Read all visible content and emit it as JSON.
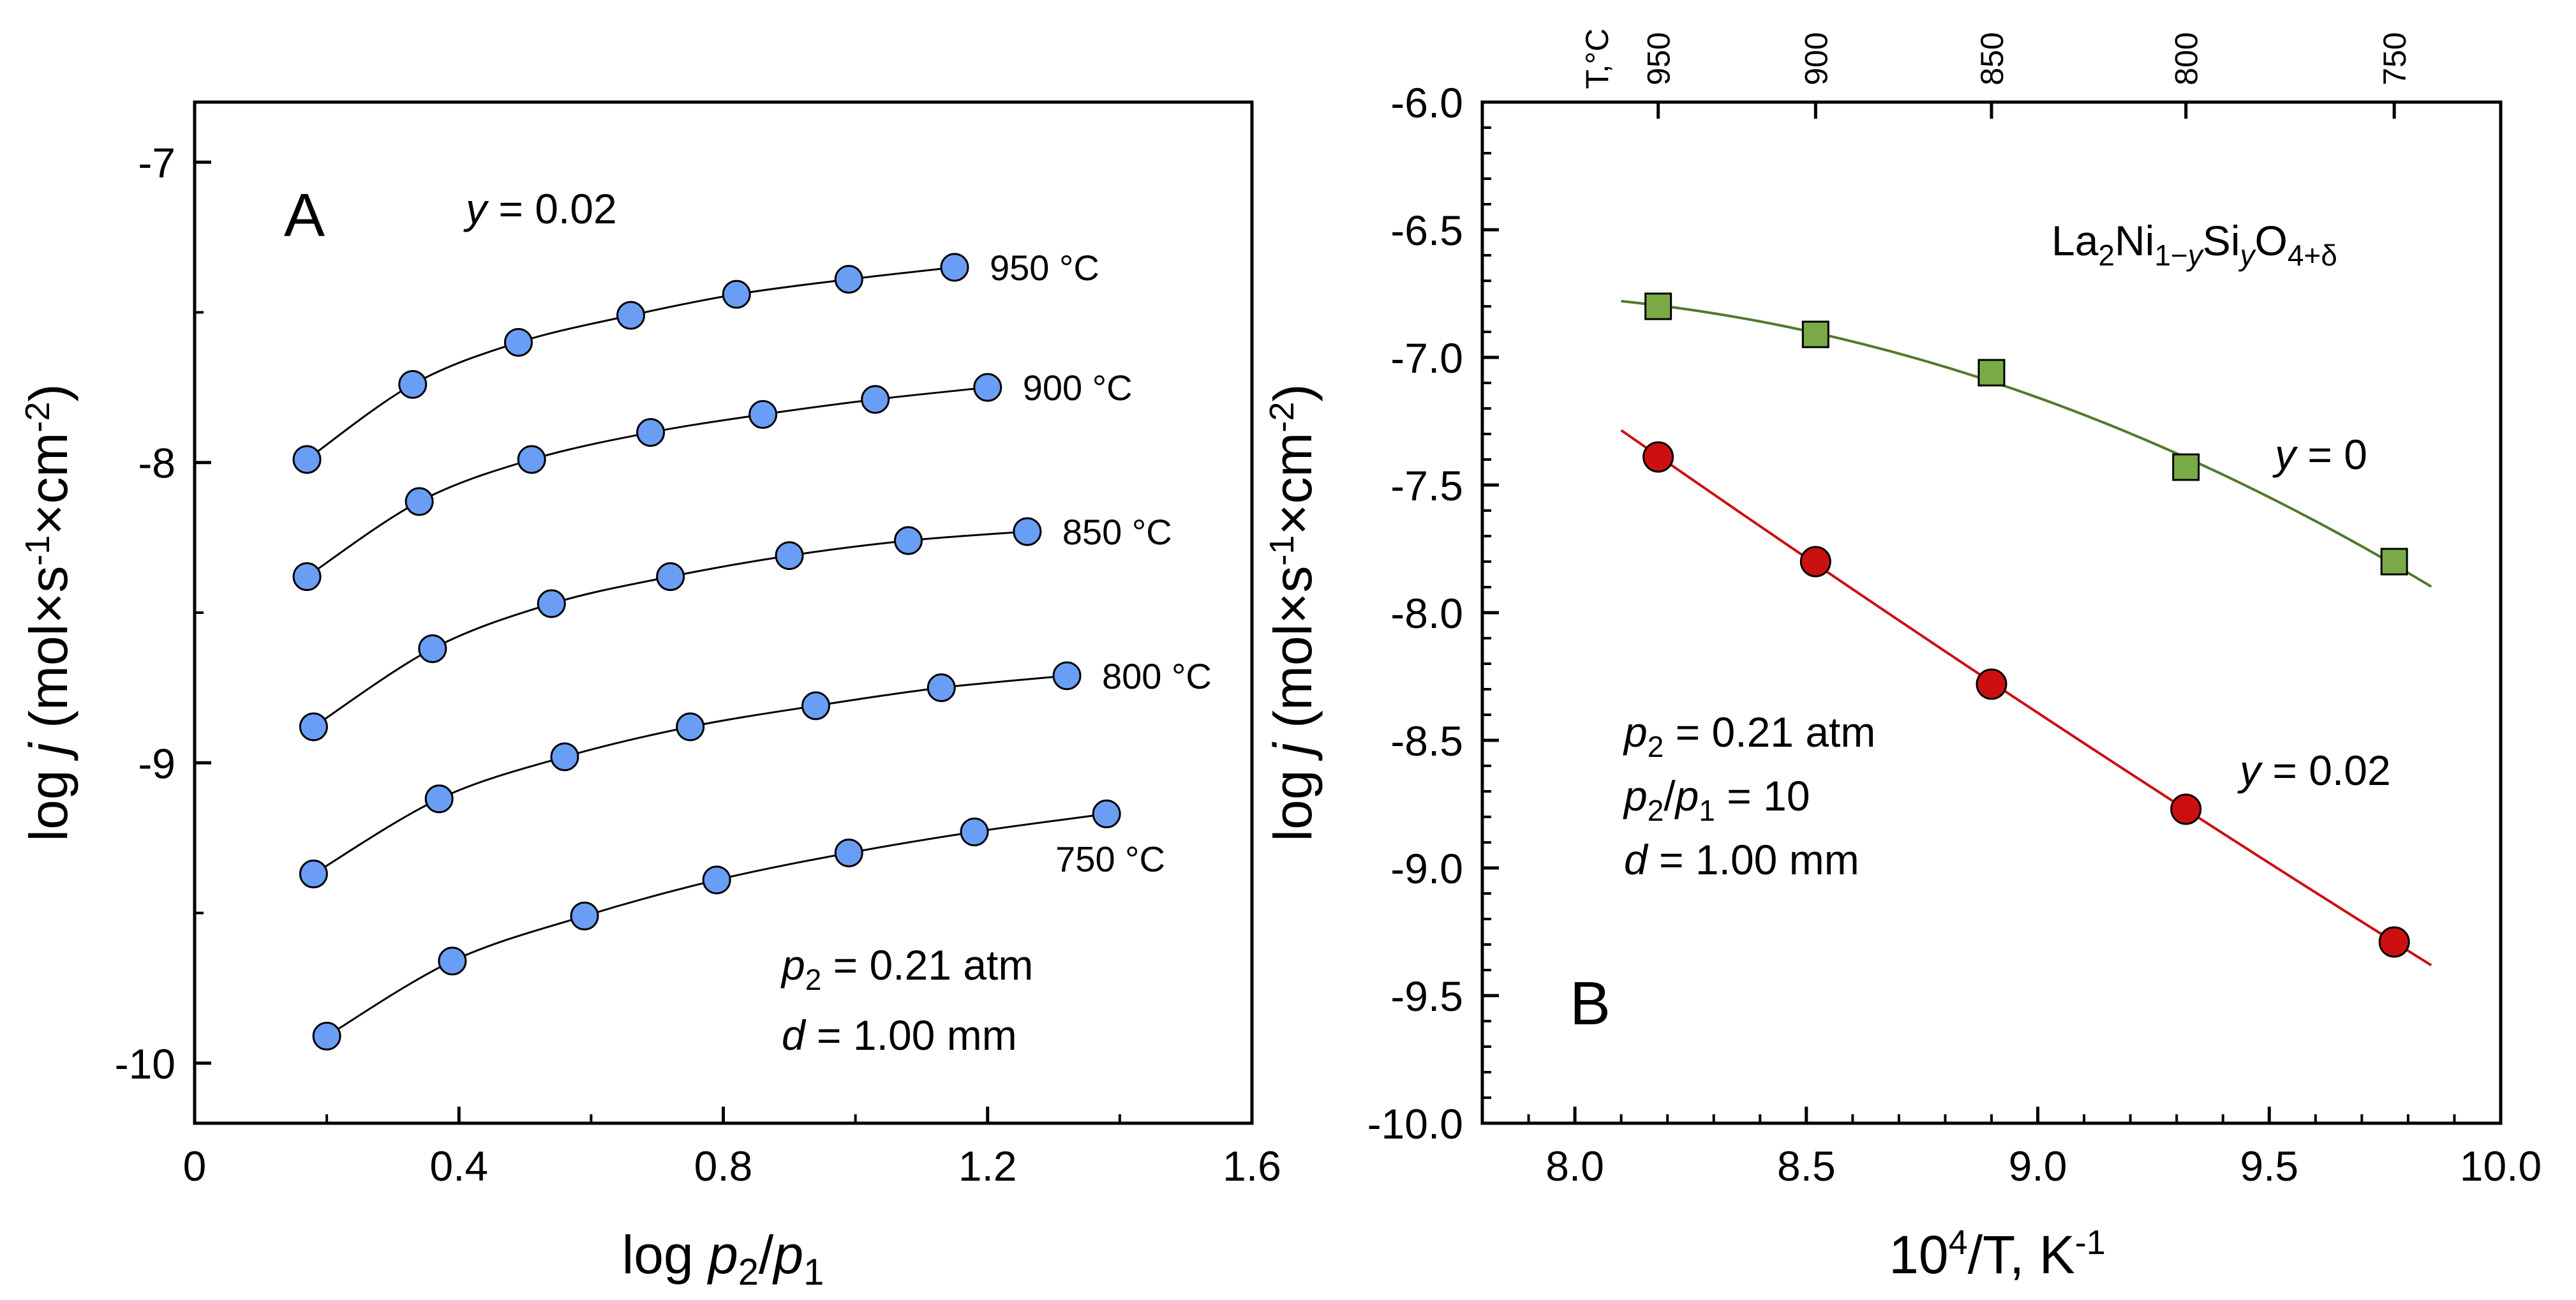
{
  "chart_data": [
    {
      "panel": "A",
      "type": "scatter",
      "title": "",
      "xlabel": {
        "pre": "log ",
        "p2": "p",
        "p2sub": "2",
        "slash": "/",
        "p1": "p",
        "p1sub": "1"
      },
      "ylabel": {
        "pre": "log ",
        "j": "j",
        "unit": " (mol×s",
        "sup1": "-1",
        "mid": "×cm",
        "sup2": "-2",
        "post": ")"
      },
      "xlim": [
        0,
        1.6
      ],
      "ylim": [
        -10.2,
        -6.8
      ],
      "x_ticks": [
        "0",
        "0.4",
        "0.8",
        "1.2",
        "1.6"
      ],
      "y_ticks": [
        "-10",
        "-9",
        "-8",
        "-7"
      ],
      "panel_label": "A",
      "annotation_y": {
        "var": "y",
        "text": " = 0.02"
      },
      "annotation_conditions": [
        {
          "var": "p",
          "sub": "2",
          "text": " = 0.21 atm"
        },
        {
          "var": "d",
          "sub": "",
          "text": " = 1.00 mm"
        }
      ],
      "marker_color": "#6a9ef5",
      "series": [
        {
          "name": "950 °C",
          "x": [
            0.17,
            0.33,
            0.49,
            0.66,
            0.82,
            0.99,
            1.15
          ],
          "y": [
            -7.99,
            -7.74,
            -7.6,
            -7.51,
            -7.44,
            -7.39,
            -7.35
          ]
        },
        {
          "name": "900 °C",
          "x": [
            0.17,
            0.34,
            0.51,
            0.69,
            0.86,
            1.03,
            1.2
          ],
          "y": [
            -8.38,
            -8.13,
            -7.99,
            -7.9,
            -7.84,
            -7.79,
            -7.75
          ]
        },
        {
          "name": "850 °C",
          "x": [
            0.18,
            0.36,
            0.54,
            0.72,
            0.9,
            1.08,
            1.26
          ],
          "y": [
            -8.88,
            -8.62,
            -8.47,
            -8.38,
            -8.31,
            -8.26,
            -8.23
          ]
        },
        {
          "name": "800 °C",
          "x": [
            0.18,
            0.37,
            0.56,
            0.75,
            0.94,
            1.13,
            1.32
          ],
          "y": [
            -9.37,
            -9.12,
            -8.98,
            -8.88,
            -8.81,
            -8.75,
            -8.71
          ]
        },
        {
          "name": "750 °C",
          "x": [
            0.2,
            0.39,
            0.59,
            0.79,
            0.99,
            1.18,
            1.38
          ],
          "y": [
            -9.91,
            -9.66,
            -9.51,
            -9.39,
            -9.3,
            -9.23,
            -9.17
          ]
        }
      ]
    },
    {
      "panel": "B",
      "type": "scatter",
      "title": "",
      "xlabel": {
        "pre": "10",
        "sup": "4",
        "mid": "/T, K",
        "sup2": "-1"
      },
      "ylabel": {
        "pre": "log ",
        "j": "j",
        "unit": " (mol×s",
        "sup1": "-1",
        "mid": "×cm",
        "sup2": "-2",
        "post": ")"
      },
      "xlim": [
        7.8,
        10.0
      ],
      "ylim": [
        -10.0,
        -6.0
      ],
      "x_ticks": [
        "8.0",
        "8.5",
        "9.0",
        "9.5",
        "10.0"
      ],
      "y_ticks": [
        "-10.0",
        "-9.5",
        "-9.0",
        "-8.5",
        "-8.0",
        "-7.5",
        "-7.0",
        "-6.5",
        "-6.0"
      ],
      "top_axis_label": "T,°C",
      "top_axis": [
        {
          "label": "950",
          "x": 8.18
        },
        {
          "label": "900",
          "x": 8.52
        },
        {
          "label": "850",
          "x": 8.9
        },
        {
          "label": "800",
          "x": 9.32
        },
        {
          "label": "750",
          "x": 9.77
        }
      ],
      "panel_label": "B",
      "formula": {
        "a": "La",
        "a_sub": "2",
        "b": "Ni",
        "b_sub": "1−",
        "b_sub_var": "y",
        "c": "Si",
        "c_sub_var": "y",
        "d": "O",
        "d_sub": "4+δ"
      },
      "annotation_conditions": [
        {
          "var": "p",
          "sub": "2",
          "text": " = 0.21 atm"
        },
        {
          "var": "p",
          "sub": "2",
          "slash": "/",
          "var2": "p",
          "sub2": "1",
          "text": " = 10"
        },
        {
          "var": "d",
          "sub": "",
          "text": " = 1.00 mm"
        }
      ],
      "series": [
        {
          "name": "y = 0",
          "var": "y",
          "text": " = 0",
          "marker": "square",
          "color": "#7aaa45",
          "line_color": "#4f7a2a",
          "x": [
            8.18,
            8.52,
            8.9,
            9.32,
            9.77
          ],
          "y": [
            -6.8,
            -6.91,
            -7.06,
            -7.43,
            -7.8
          ],
          "fit_x": [
            8.1,
            9.85
          ]
        },
        {
          "name": "y = 0.02",
          "var": "y",
          "text": " = 0.02",
          "marker": "circle",
          "color": "#cc1010",
          "line_color": "#cc1010",
          "x": [
            8.18,
            8.52,
            8.9,
            9.32,
            9.77
          ],
          "y": [
            -7.39,
            -7.8,
            -8.28,
            -8.77,
            -9.29
          ],
          "fit_x": [
            8.1,
            9.85
          ]
        }
      ]
    }
  ]
}
